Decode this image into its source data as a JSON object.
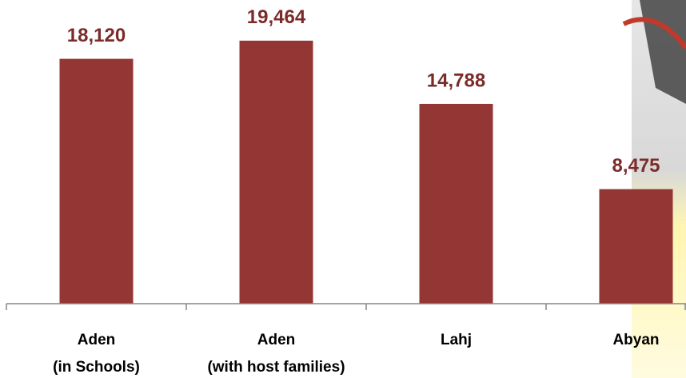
{
  "chart_data": {
    "type": "bar",
    "categories": [
      [
        "Aden",
        "(in Schools)"
      ],
      [
        "Aden",
        "(with host families)"
      ],
      [
        "Lahj"
      ],
      [
        "Abyan"
      ]
    ],
    "values": [
      18120,
      19464,
      14788,
      8475
    ],
    "value_labels": [
      "18,120",
      "19,464",
      "14,788",
      "8,475"
    ],
    "color": "#943634",
    "ylim": [
      0,
      22000
    ]
  }
}
